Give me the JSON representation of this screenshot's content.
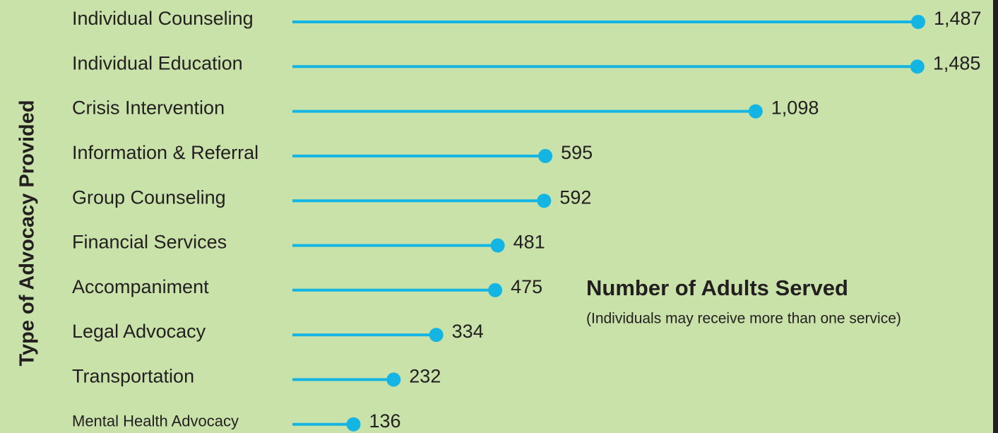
{
  "chart_data": {
    "type": "lollipop",
    "y_axis_label": "Type of Advocacy Provided",
    "annotation_title": "Number of Adults Served",
    "annotation_subtitle": "(Individuals may receive more than one service)",
    "categories": [
      "Individual Counseling",
      "Individual Education",
      "Crisis Intervention",
      "Information & Referral",
      "Group Counseling",
      "Financial Services",
      "Accompaniment",
      "Legal Advocacy",
      "Transportation",
      "Mental Health Advocacy"
    ],
    "values": [
      1487,
      1485,
      1098,
      595,
      592,
      481,
      475,
      334,
      232,
      136
    ],
    "value_labels": [
      "1,487",
      "1,485",
      "1,098",
      "595",
      "592",
      "481",
      "475",
      "334",
      "232",
      "136"
    ],
    "color": "#14b5e3"
  }
}
